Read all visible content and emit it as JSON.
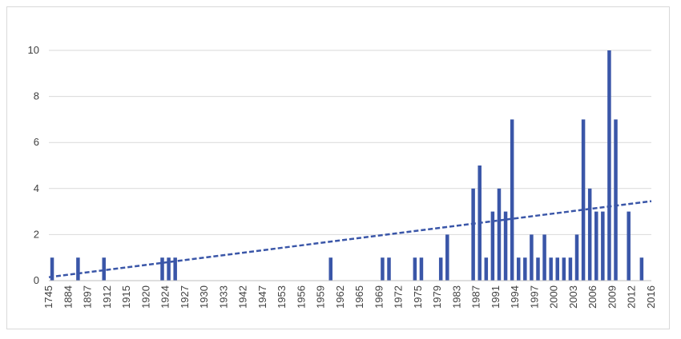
{
  "chart_data": {
    "type": "bar",
    "title": "",
    "xlabel": "",
    "ylabel": "",
    "ylim": [
      0,
      10
    ],
    "yticks": [
      0,
      2,
      4,
      6,
      8,
      10
    ],
    "grid": true,
    "legend": "none",
    "colors": {
      "bar": "#3a56a8",
      "trend": "#3a56a8",
      "grid": "#d9d9d9",
      "axis": "#bfbfbf",
      "text": "#404040"
    },
    "x_tick_labels": [
      "1745",
      "1884",
      "1897",
      "1912",
      "1915",
      "1920",
      "1924",
      "1927",
      "1930",
      "1933",
      "1942",
      "1947",
      "1953",
      "1956",
      "1959",
      "1962",
      "1965",
      "1969",
      "1972",
      "1975",
      "1979",
      "1983",
      "1987",
      "1991",
      "1994",
      "1997",
      "2000",
      "2003",
      "2006",
      "2009",
      "2012",
      "2016"
    ],
    "categories": [
      "1745",
      "1884",
      "1897",
      "1912",
      "1915",
      "1920",
      "1924",
      "1927",
      "1930",
      "1933",
      "1942",
      "1947",
      "1953",
      "1956",
      "1959",
      "1962",
      "1965",
      "1969",
      "1972",
      "1975",
      "1979",
      "1983",
      "1987",
      "1991",
      "1994",
      "1997",
      "2000",
      "2003",
      "2006",
      "2009",
      "2012",
      "2016"
    ],
    "bars": [
      {
        "pos": 0.5,
        "value": 1
      },
      {
        "pos": 4.5,
        "value": 1
      },
      {
        "pos": 8.5,
        "value": 1
      },
      {
        "pos": 17.5,
        "value": 1
      },
      {
        "pos": 18.5,
        "value": 1
      },
      {
        "pos": 19.5,
        "value": 1
      },
      {
        "pos": 43.5,
        "value": 1
      },
      {
        "pos": 51.5,
        "value": 1
      },
      {
        "pos": 52.5,
        "value": 1
      },
      {
        "pos": 56.5,
        "value": 1
      },
      {
        "pos": 57.5,
        "value": 1
      },
      {
        "pos": 60.5,
        "value": 1
      },
      {
        "pos": 61.5,
        "value": 2
      },
      {
        "pos": 65.5,
        "value": 4
      },
      {
        "pos": 66.5,
        "value": 5
      },
      {
        "pos": 67.5,
        "value": 1
      },
      {
        "pos": 68.5,
        "value": 3
      },
      {
        "pos": 69.5,
        "value": 4
      },
      {
        "pos": 70.5,
        "value": 3
      },
      {
        "pos": 71.5,
        "value": 7
      },
      {
        "pos": 72.5,
        "value": 1
      },
      {
        "pos": 73.5,
        "value": 1
      },
      {
        "pos": 74.5,
        "value": 2
      },
      {
        "pos": 75.5,
        "value": 1
      },
      {
        "pos": 76.5,
        "value": 2
      },
      {
        "pos": 77.5,
        "value": 1
      },
      {
        "pos": 78.5,
        "value": 1
      },
      {
        "pos": 79.5,
        "value": 1
      },
      {
        "pos": 80.5,
        "value": 1
      },
      {
        "pos": 81.5,
        "value": 2
      },
      {
        "pos": 82.5,
        "value": 7
      },
      {
        "pos": 83.5,
        "value": 4
      },
      {
        "pos": 84.5,
        "value": 3
      },
      {
        "pos": 85.5,
        "value": 3
      },
      {
        "pos": 86.5,
        "value": 10
      },
      {
        "pos": 87.5,
        "value": 7
      },
      {
        "pos": 89.5,
        "value": 3
      },
      {
        "pos": 91.5,
        "value": 1
      }
    ],
    "slot_count": 93,
    "trendline": {
      "style": "dashed",
      "start_value": 0.15,
      "end_value": 3.45
    }
  }
}
